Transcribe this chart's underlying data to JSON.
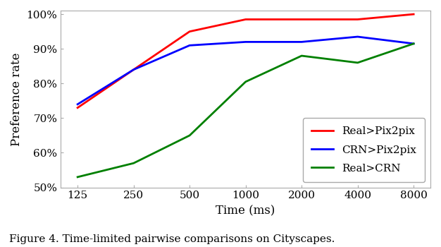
{
  "x": [
    125,
    250,
    500,
    1000,
    2000,
    4000,
    8000
  ],
  "real_pix2pix": [
    73,
    84,
    95,
    98.5,
    98.5,
    98.5,
    100
  ],
  "crn_pix2pix": [
    74,
    84,
    91,
    92,
    92,
    93.5,
    91.5
  ],
  "real_crn": [
    53,
    57,
    65,
    80.5,
    88,
    86,
    91.5
  ],
  "colors": {
    "real_pix2pix": "#ff0000",
    "crn_pix2pix": "#0000ff",
    "real_crn": "#008000"
  },
  "legend_labels": [
    "Real>Pix2pix",
    "CRN>Pix2pix",
    "Real>CRN"
  ],
  "xlabel": "Time (ms)",
  "ylabel": "Preference rate",
  "ylim": [
    50,
    101
  ],
  "yticks": [
    50,
    60,
    70,
    80,
    90,
    100
  ],
  "xtick_labels": [
    "125",
    "250",
    "500",
    "1000",
    "2000",
    "4000",
    "8000"
  ],
  "caption": "Figure 4. Time-limited pairwise comparisons on Cityscapes.",
  "linewidth": 2.0,
  "spine_color": "#aaaaaa",
  "bg_color": "#ffffff",
  "font_family": "DejaVu Serif"
}
